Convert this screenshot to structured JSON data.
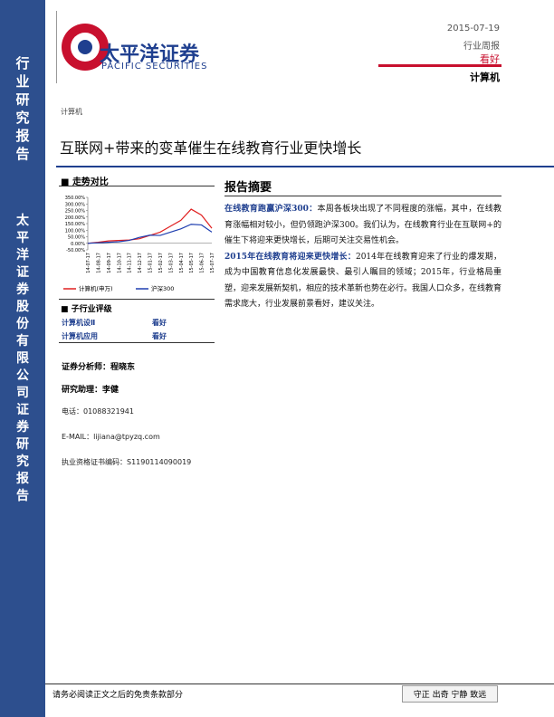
{
  "sidebar": {
    "top": "行业研究报告",
    "bottom": "太平洋证券股份有限公司证券研究报告"
  },
  "header": {
    "logo_cn": "太平洋证券",
    "logo_en": "PACIFIC SECURITIES",
    "date": "2015-07-19",
    "report_type": "行业周报",
    "rating": "看好",
    "industry": "计算机",
    "section": "计算机"
  },
  "title": "互联网+带来的变革催生在线教育行业更快增长",
  "chart_heading": "走势对比",
  "chart_data": {
    "type": "line",
    "categories": [
      "14-07-17",
      "14-08-17",
      "14-09-17",
      "14-10-17",
      "14-11-17",
      "14-12-17",
      "15-01-17",
      "15-02-17",
      "15-03-17",
      "15-04-17",
      "15-05-17",
      "15-06-17",
      "15-07-17"
    ],
    "series": [
      {
        "name": "计算机(申万)",
        "color": "#e02020",
        "values": [
          0,
          8,
          18,
          22,
          25,
          35,
          60,
          85,
          130,
          175,
          260,
          215,
          115
        ]
      },
      {
        "name": "沪深300",
        "color": "#1f3fb0",
        "values": [
          0,
          4,
          8,
          12,
          22,
          45,
          62,
          60,
          85,
          110,
          145,
          140,
          85
        ]
      }
    ],
    "ylim": [
      -50,
      350
    ],
    "yticks": [
      {
        "value": -50,
        "label": "-50.00%"
      },
      {
        "value": 0,
        "label": "0.00%"
      },
      {
        "value": 50,
        "label": "50.00%"
      },
      {
        "value": 100,
        "label": "100.00%"
      },
      {
        "value": 150,
        "label": "150.00%"
      },
      {
        "value": 200,
        "label": "200.00%"
      },
      {
        "value": 250,
        "label": "250.00%"
      },
      {
        "value": 300,
        "label": "300.00%"
      },
      {
        "value": 350,
        "label": "350.00%"
      }
    ]
  },
  "rating_table": {
    "heading": "子行业评级",
    "rows": [
      [
        "计算机设Ⅱ",
        "看好"
      ],
      [
        "计算机应用",
        "看好"
      ]
    ]
  },
  "analysts": {
    "analyst": "证券分析师：程晓东",
    "assistant": "研究助理：李健",
    "phone": "电话：01088321941",
    "email": "E-MAIL：lijiana@tpyzq.com",
    "license": "执业资格证书编码：S1190114090019"
  },
  "summary": {
    "heading": "报告摘要",
    "paragraphs": [
      {
        "lead": "在线教育跑赢沪深300：",
        "text": "本周各板块出现了不同程度的涨幅，其中，在线教育涨幅相对较小，但仍领跑沪深300。我们认为，在线教育行业在互联网+的催生下将迎来更快增长，后期可关注交易性机会。"
      },
      {
        "lead": "2015年在线教育将迎来更快增长：",
        "text": "2014年在线教育迎来了行业的爆发期，成为中国教育信息化发展最快、最引人瞩目的领域；2015年，行业格局重塑，迎来发展新契机，相应的技术革新也势在必行。我国人口众多，在线教育需求庞大，行业发展前景看好，建议关注。"
      }
    ]
  },
  "footer": {
    "disclaimer": "请务必阅读正文之后的免责条款部分",
    "motto": "守正 出奇 宁静 致远"
  }
}
